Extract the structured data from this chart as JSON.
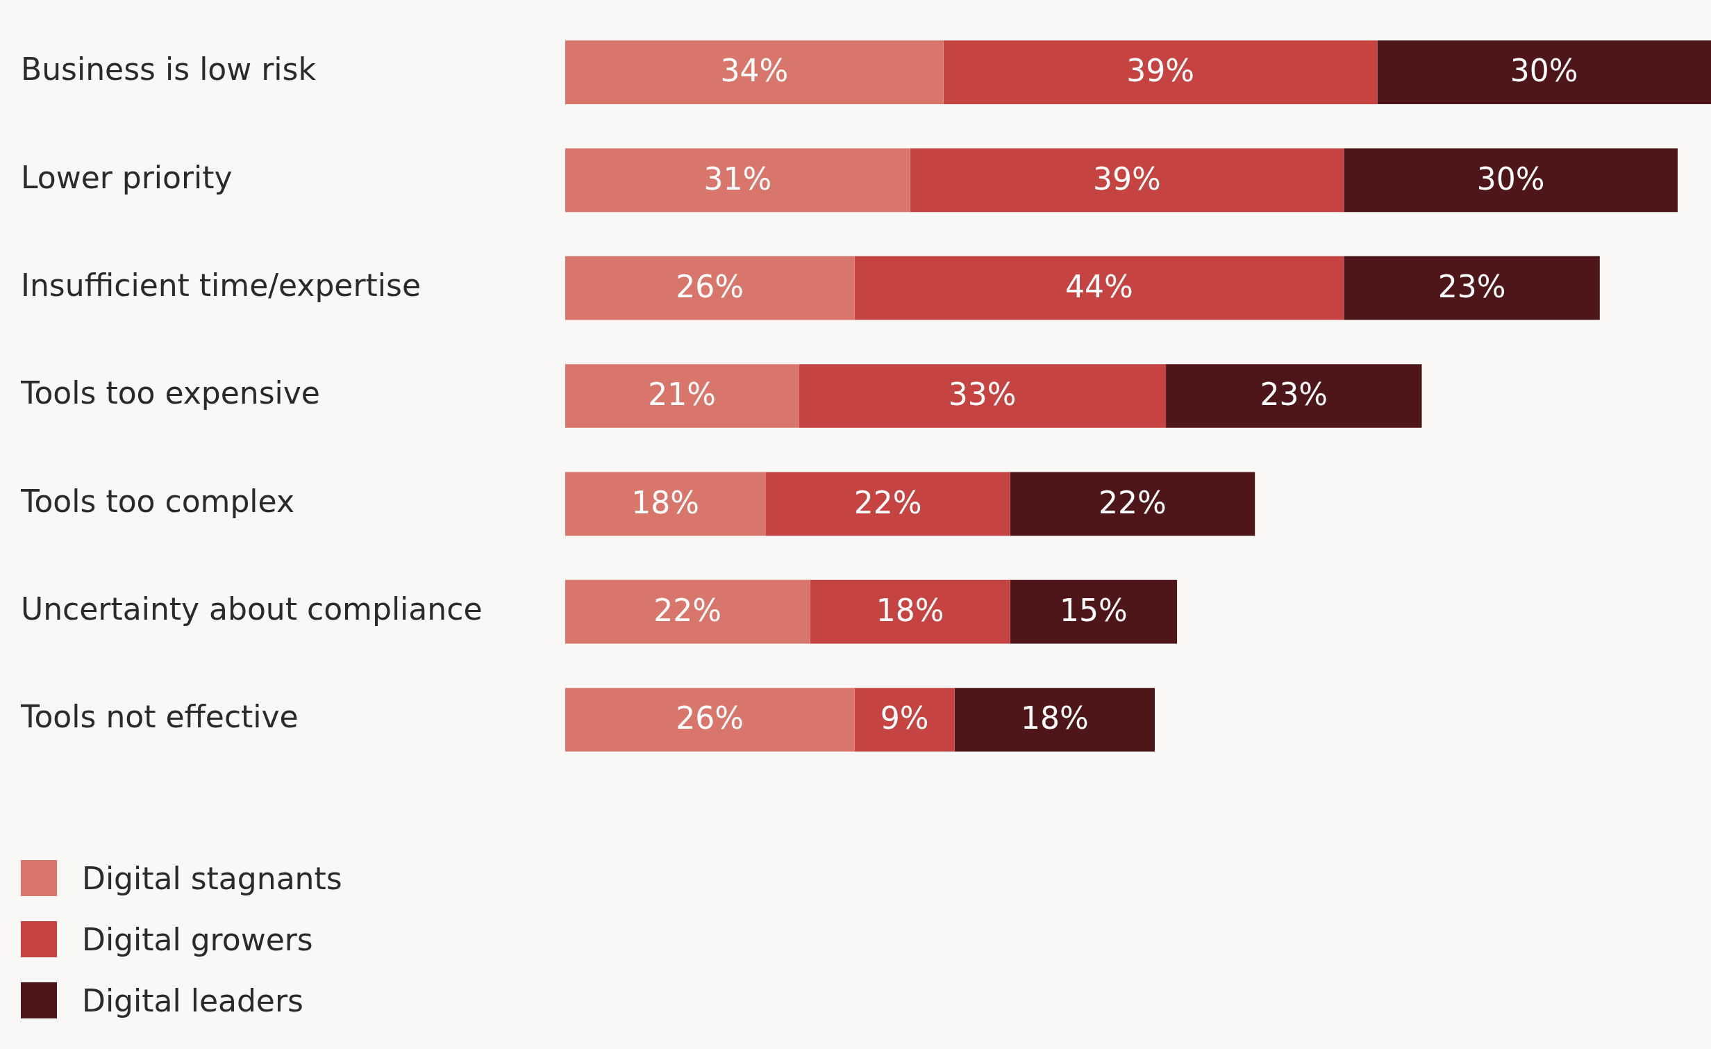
{
  "chart_data": {
    "type": "bar",
    "orientation": "horizontal",
    "stacked": true,
    "categories": [
      "Business is low risk",
      "Lower priority",
      "Insufficient time/expertise",
      "Tools too expensive",
      "Tools too complex",
      "Uncertainty about compliance",
      "Tools not effective"
    ],
    "series": [
      {
        "name": "Digital stagnants",
        "color": "#d9766b",
        "values": [
          34,
          31,
          26,
          21,
          18,
          22,
          26
        ],
        "value_labels": [
          "34%",
          "31%",
          "26%",
          "21%",
          "18%",
          "22%",
          "26%"
        ]
      },
      {
        "name": "Digital growers",
        "color": "#c54442",
        "values": [
          39,
          39,
          44,
          33,
          22,
          18,
          9
        ],
        "value_labels": [
          "39%",
          "39%",
          "44%",
          "33%",
          "22%",
          "18%",
          "9%"
        ]
      },
      {
        "name": "Digital leaders",
        "color": "#4e1618",
        "values": [
          30,
          30,
          23,
          23,
          22,
          15,
          18
        ],
        "value_labels": [
          "30%",
          "30%",
          "23%",
          "23%",
          "22%",
          "15%",
          "18%"
        ]
      }
    ],
    "xlim": [
      0,
      103
    ],
    "tick_labels": "y",
    "grid": false,
    "legend": "bottom left"
  }
}
